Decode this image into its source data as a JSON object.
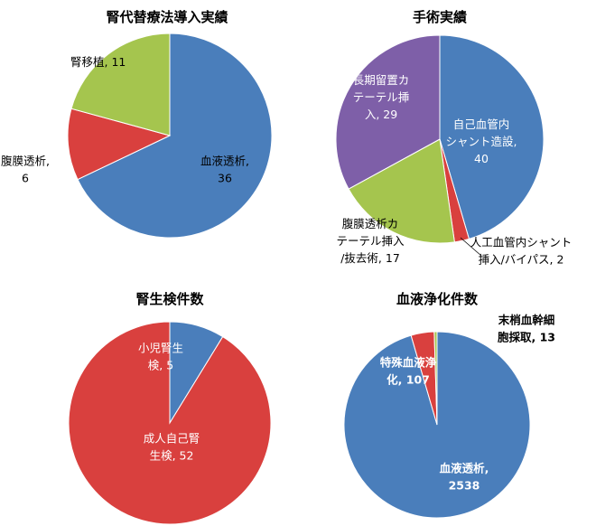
{
  "colors": {
    "blue": "#4a7ebb",
    "red": "#d9403e",
    "green": "#a5c54e",
    "purple": "#7e5fa8"
  },
  "chart_data": [
    {
      "type": "pie",
      "title": "腎代替療法導入実績",
      "slices": [
        {
          "label": "血液透析",
          "value": 36,
          "color": "#4a7ebb"
        },
        {
          "label": "腹膜透析",
          "value": 6,
          "color": "#d9403e"
        },
        {
          "label": "腎移植",
          "value": 11,
          "color": "#a5c54e"
        }
      ]
    },
    {
      "type": "pie",
      "title": "手術実績",
      "slices": [
        {
          "label": "自己血管内シャント造設",
          "value": 40,
          "color": "#4a7ebb"
        },
        {
          "label": "人工血管内シャント挿入/バイパス",
          "value": 2,
          "color": "#d9403e"
        },
        {
          "label": "腹膜透析カテーテル挿入/抜去術",
          "value": 17,
          "color": "#a5c54e"
        },
        {
          "label": "長期留置カテーテル挿入",
          "value": 29,
          "color": "#7e5fa8"
        }
      ]
    },
    {
      "type": "pie",
      "title": "腎生検件数",
      "slices": [
        {
          "label": "小児腎生検",
          "value": 5,
          "color": "#4a7ebb"
        },
        {
          "label": "成人自己腎生検",
          "value": 52,
          "color": "#d9403e"
        }
      ]
    },
    {
      "type": "pie",
      "title": "血液浄化件数",
      "slices": [
        {
          "label": "血液透析",
          "value": 2538,
          "color": "#4a7ebb"
        },
        {
          "label": "特殊血液浄化",
          "value": 107,
          "color": "#d9403e"
        },
        {
          "label": "末梢血幹細胞採取",
          "value": 13,
          "color": "#a5c54e"
        }
      ]
    }
  ],
  "label_text": [
    [
      [
        "血液透析,",
        "36"
      ],
      [
        "腹膜透析,",
        "6"
      ],
      [
        "腎移植, 11"
      ]
    ],
    [
      [
        "自己血管内",
        "シャント造設,",
        "40"
      ],
      [
        "人工血管内シャント",
        "挿入/バイパス, 2"
      ],
      [
        "腹膜透析カ",
        "テーテル挿入",
        "/抜去術, 17"
      ],
      [
        "長期留置カ",
        "テーテル挿",
        "入, 29"
      ]
    ],
    [
      [
        "小児腎生",
        "検, 5"
      ],
      [
        "成人自己腎",
        "生検, 52"
      ]
    ],
    [
      [
        "血液透析,",
        "2538"
      ],
      [
        "特殊血液浄",
        "化, 107"
      ],
      [
        "末梢血幹細",
        "胞採取, 13"
      ]
    ]
  ]
}
